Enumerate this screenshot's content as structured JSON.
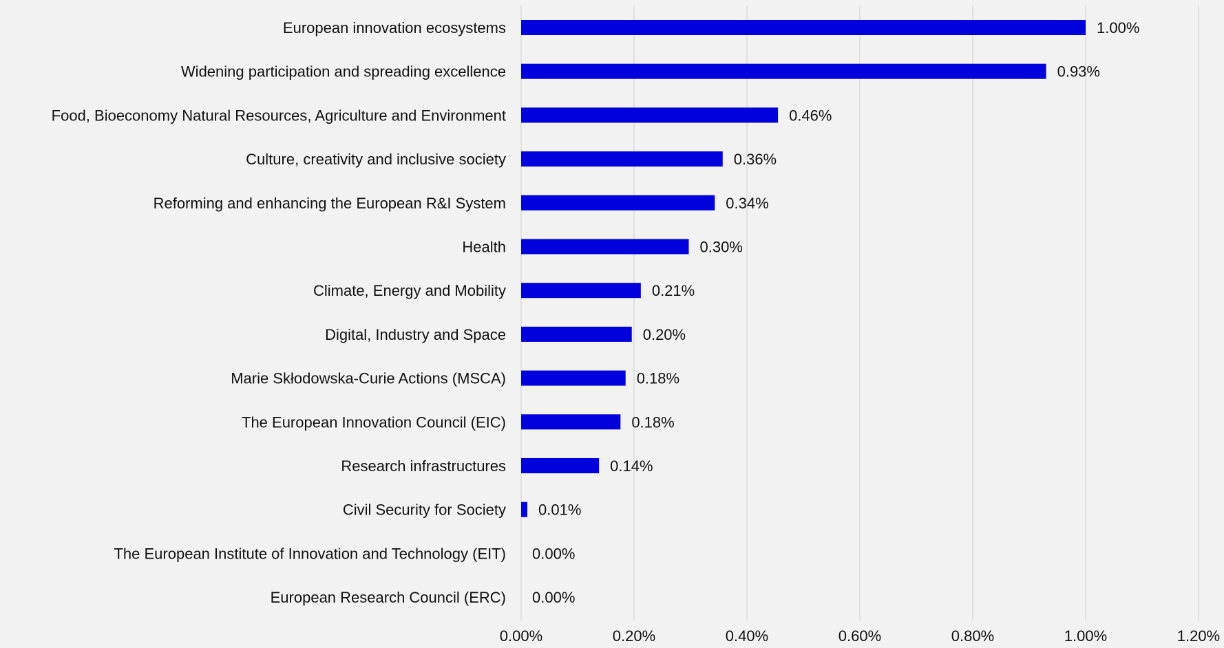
{
  "chart_data": {
    "type": "bar",
    "orientation": "horizontal",
    "categories": [
      "European innovation ecosystems",
      "Widening participation and spreading excellence",
      "Food, Bioeconomy Natural Resources, Agriculture and Environment",
      "Culture, creativity and inclusive society",
      "Reforming and enhancing the European R&I System",
      "Health",
      "Climate, Energy and Mobility",
      "Digital, Industry and Space",
      "Marie Skłodowska-Curie Actions (MSCA)",
      "The European Innovation Council (EIC)",
      "Research infrastructures",
      "Civil Security for Society",
      "The European Institute of Innovation and Technology (EIT)",
      "European Research Council (ERC)"
    ],
    "values": [
      1.0,
      0.93,
      0.455,
      0.357,
      0.343,
      0.297,
      0.212,
      0.196,
      0.185,
      0.176,
      0.138,
      0.011,
      0.0,
      0.0
    ],
    "value_labels": [
      "1.00%",
      "0.93%",
      "0.46%",
      "0.36%",
      "0.34%",
      "0.30%",
      "0.21%",
      "0.20%",
      "0.18%",
      "0.18%",
      "0.14%",
      "0.01%",
      "0.00%",
      "0.00%"
    ],
    "x_ticks": [
      0,
      0.2,
      0.4,
      0.6,
      0.8,
      1.0,
      1.2
    ],
    "x_tick_labels": [
      "0.00%",
      "0.20%",
      "0.40%",
      "0.60%",
      "0.80%",
      "1.00%",
      "1.20%"
    ],
    "xlim": [
      0,
      1.2
    ],
    "grid": "vertical",
    "title": "",
    "xlabel": "",
    "ylabel": "",
    "bar_color": "#0000dd",
    "background_color": "#f2f2f2",
    "grid_color": "#d9d9d9"
  }
}
